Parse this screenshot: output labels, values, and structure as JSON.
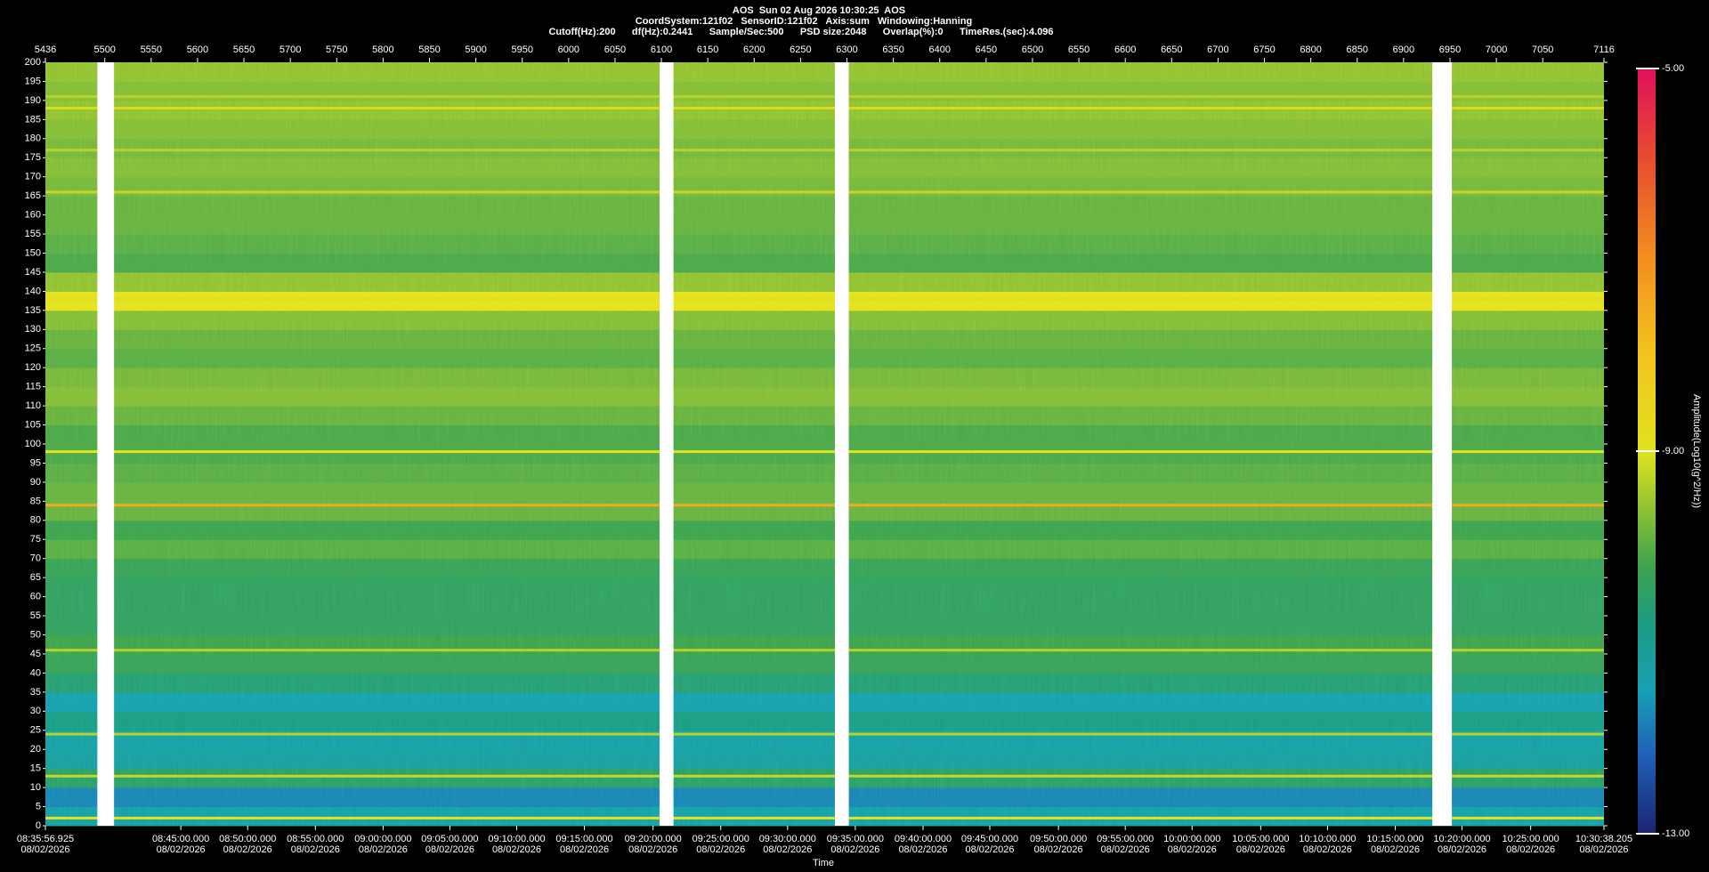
{
  "chart_data": {
    "type": "spectrogram",
    "title": "AOS  Sun 02 Aug 2026 10:30:25  AOS",
    "subtitle": "CoordSystem:121f02   SensorID:121f02   Axis:sum   Windowing:Hanning",
    "parameters": "Cutoff(Hz):200      df(Hz):0.2441      Sample/Sec:500      PSD size:2048      Overlap(%):0      TimeRes.(sec):4.096",
    "x_label": "Time",
    "colorbar_label": "Amplitude(Log10(g^2/Hz))",
    "xlim": [
      5436,
      7116
    ],
    "xticks": [
      5436,
      5500,
      5550,
      5600,
      5650,
      5700,
      5750,
      5800,
      5850,
      5900,
      5950,
      6000,
      6050,
      6100,
      6150,
      6200,
      6250,
      6300,
      6350,
      6400,
      6450,
      6500,
      6550,
      6600,
      6650,
      6700,
      6750,
      6800,
      6850,
      6900,
      6950,
      7000,
      7050,
      7116
    ],
    "x2ticks": [
      {
        "value": 5436,
        "label": "08:35:56.925",
        "date": "08/02/2026"
      },
      {
        "value": 5582,
        "label": "08:45:00.000",
        "date": "08/02/2026"
      },
      {
        "value": 5654,
        "label": "08:50:00.000",
        "date": "08/02/2026"
      },
      {
        "value": 5727,
        "label": "08:55:00.000",
        "date": "08/02/2026"
      },
      {
        "value": 5800,
        "label": "09:00:00.000",
        "date": "08/02/2026"
      },
      {
        "value": 5872,
        "label": "09:05:00.000",
        "date": "08/02/2026"
      },
      {
        "value": 5944,
        "label": "09:10:00.000",
        "date": "08/02/2026"
      },
      {
        "value": 6017,
        "label": "09:15:00.000",
        "date": "08/02/2026"
      },
      {
        "value": 6091,
        "label": "09:20:00.000",
        "date": "08/02/2026"
      },
      {
        "value": 6164,
        "label": "09:25:00.000",
        "date": "08/02/2026"
      },
      {
        "value": 6236,
        "label": "09:30:00.000",
        "date": "08/02/2026"
      },
      {
        "value": 6309,
        "label": "09:35:00.000",
        "date": "08/02/2026"
      },
      {
        "value": 6382,
        "label": "09:40:00.000",
        "date": "08/02/2026"
      },
      {
        "value": 6454,
        "label": "09:45:00.000",
        "date": "08/02/2026"
      },
      {
        "value": 6528,
        "label": "09:50:00.000",
        "date": "08/02/2026"
      },
      {
        "value": 6600,
        "label": "09:55:00.000",
        "date": "08/02/2026"
      },
      {
        "value": 6672,
        "label": "10:00:00.000",
        "date": "08/02/2026"
      },
      {
        "value": 6746,
        "label": "10:05:00.000",
        "date": "08/02/2026"
      },
      {
        "value": 6818,
        "label": "10:10:00.000",
        "date": "08/02/2026"
      },
      {
        "value": 6891,
        "label": "10:15:00.000",
        "date": "08/02/2026"
      },
      {
        "value": 6963,
        "label": "10:20:00.000",
        "date": "08/02/2026"
      },
      {
        "value": 7037,
        "label": "10:25:00.000",
        "date": "08/02/2026"
      },
      {
        "value": 7116,
        "label": "10:30:38.205",
        "date": "08/02/2026"
      }
    ],
    "ylim": [
      0,
      200
    ],
    "yticks": [
      0,
      5,
      10,
      15,
      20,
      25,
      30,
      35,
      40,
      45,
      50,
      55,
      60,
      65,
      70,
      75,
      80,
      85,
      90,
      95,
      100,
      105,
      110,
      115,
      120,
      125,
      130,
      135,
      140,
      145,
      150,
      155,
      160,
      165,
      170,
      175,
      180,
      185,
      190,
      195,
      200
    ],
    "band_edges": [
      0,
      5,
      10,
      15,
      20,
      25,
      30,
      35,
      40,
      45,
      50,
      55,
      60,
      65,
      70,
      75,
      80,
      85,
      90,
      95,
      100,
      105,
      110,
      115,
      120,
      125,
      130,
      135,
      140,
      145,
      150,
      155,
      160,
      165,
      170,
      175,
      180,
      185,
      190,
      195,
      200
    ],
    "band_values": [
      -11.3,
      -11.8,
      -10.5,
      -11.2,
      -11.3,
      -10.8,
      -11.4,
      -10.6,
      -10.3,
      -10.2,
      -10.4,
      -10.4,
      -10.4,
      -10.3,
      -10.0,
      -10.2,
      -9.9,
      -9.9,
      -10.0,
      -10.1,
      -10.1,
      -9.9,
      -9.7,
      -9.8,
      -10.0,
      -9.9,
      -9.7,
      -9.0,
      -9.6,
      -10.1,
      -10.0,
      -9.9,
      -9.9,
      -9.8,
      -9.7,
      -9.8,
      -9.7,
      -9.6,
      -9.7,
      -9.6
    ],
    "line_freqs": [
      2,
      13,
      24,
      46,
      84,
      98,
      138,
      166,
      177,
      188,
      191
    ],
    "line_values": [
      -9.0,
      -9.2,
      -9.3,
      -9.3,
      -7.5,
      -9.0,
      -8.8,
      -9.2,
      -9.3,
      -9.1,
      -9.3
    ],
    "gaps": [
      [
        5492,
        5510
      ],
      [
        6098,
        6113
      ],
      [
        6287,
        6302
      ],
      [
        6931,
        6952
      ]
    ],
    "zlim": [
      -13,
      -5
    ],
    "zticks": [
      {
        "value": -13,
        "label": "-13.00"
      },
      {
        "value": -9,
        "label": "-9.00"
      },
      {
        "value": -5,
        "label": "-5.00"
      }
    ],
    "colorscale": [
      [
        -13,
        "#1c2470"
      ],
      [
        -12.2,
        "#1f5fb5"
      ],
      [
        -11.5,
        "#18a0b4"
      ],
      [
        -10.8,
        "#1c9c82"
      ],
      [
        -10.2,
        "#3ea24e"
      ],
      [
        -9.6,
        "#90c232"
      ],
      [
        -9.0,
        "#e2e21e"
      ],
      [
        -8.0,
        "#f2c41e"
      ],
      [
        -7.0,
        "#f2901e"
      ],
      [
        -6.0,
        "#e8502e"
      ],
      [
        -5.0,
        "#e0105a"
      ]
    ],
    "gap_color": "#ffffff"
  }
}
